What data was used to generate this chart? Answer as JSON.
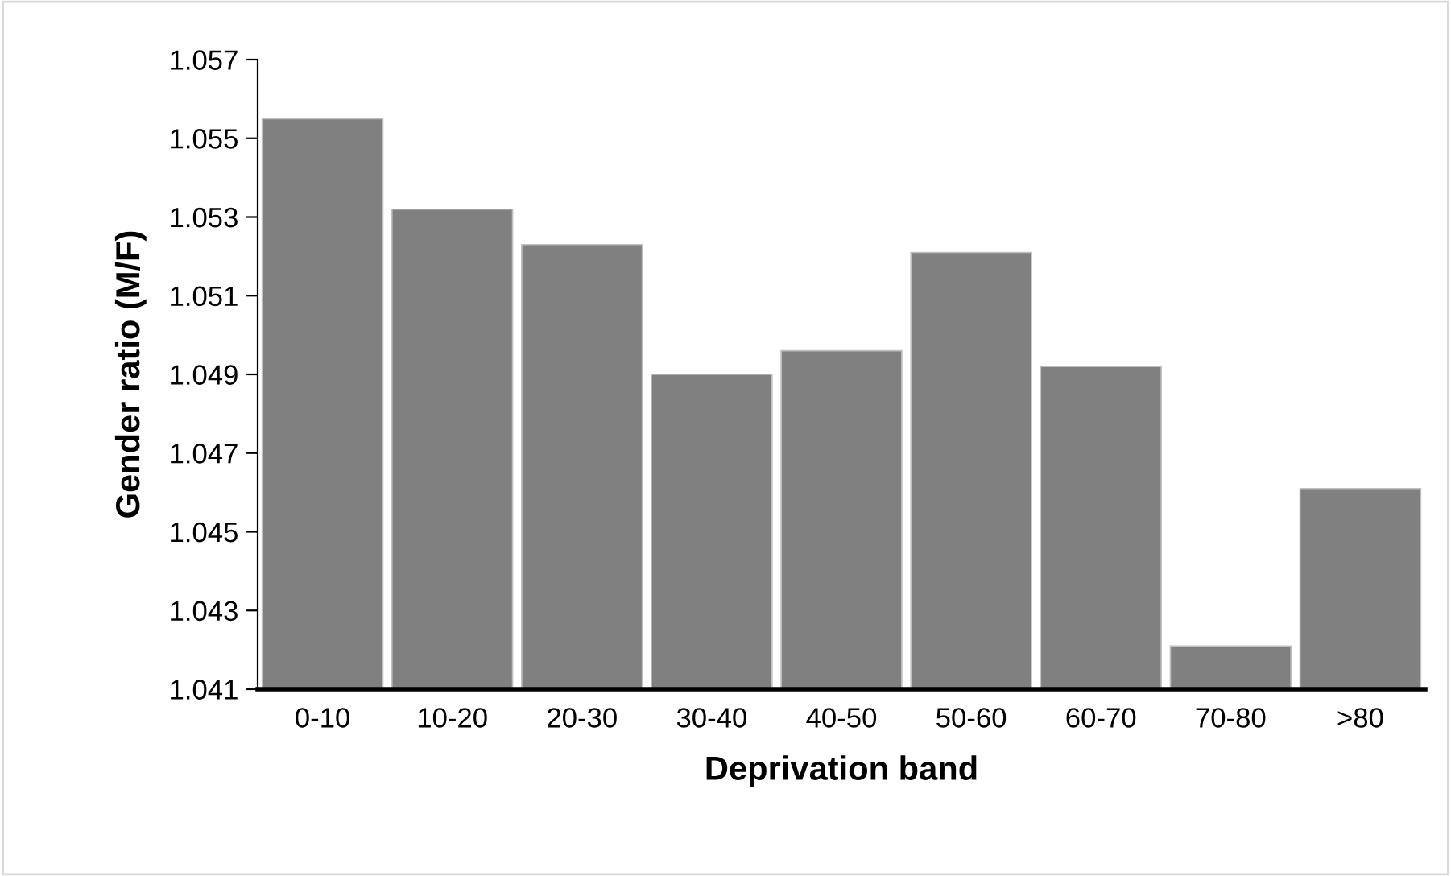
{
  "chart_data": {
    "type": "bar",
    "xlabel": "Deprivation band",
    "ylabel": "Gender ratio (M/F)",
    "categories": [
      "0-10",
      "10-20",
      "20-30",
      "30-40",
      "40-50",
      "50-60",
      "60-70",
      "70-80",
      ">80"
    ],
    "values": [
      1.0555,
      1.0532,
      1.0523,
      1.049,
      1.0496,
      1.0521,
      1.0492,
      1.0421,
      1.0461
    ],
    "color": "#808080",
    "ylim": [
      1.041,
      1.057
    ],
    "yticks": [
      {
        "value": 1.041,
        "label": "1.041"
      },
      {
        "value": 1.043,
        "label": "1.043"
      },
      {
        "value": 1.045,
        "label": "1.045"
      },
      {
        "value": 1.047,
        "label": "1.047"
      },
      {
        "value": 1.049,
        "label": "1.049"
      },
      {
        "value": 1.051,
        "label": "1.051"
      },
      {
        "value": 1.053,
        "label": "1.053"
      },
      {
        "value": 1.055,
        "label": "1.055"
      },
      {
        "value": 1.057,
        "label": "1.057"
      }
    ],
    "grid": false,
    "legend": false
  }
}
